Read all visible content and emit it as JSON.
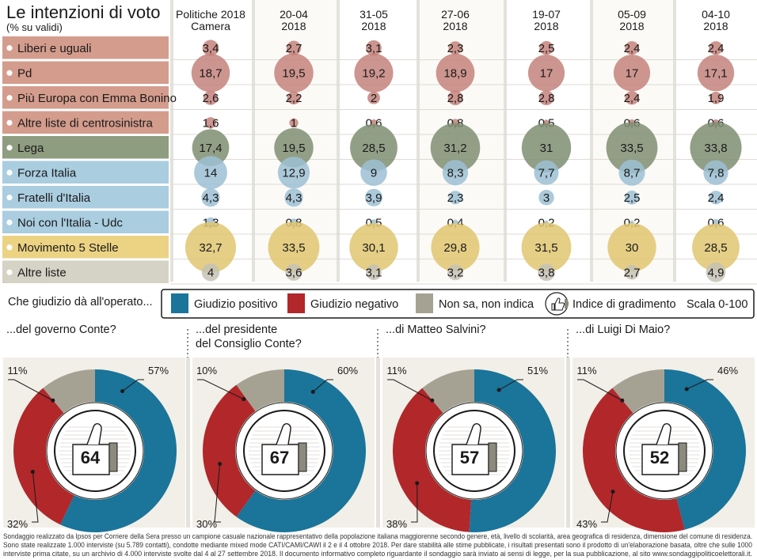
{
  "chart_data": [
    {
      "type": "table",
      "title": "Le intenzioni di voto",
      "subtitle": "(% su validi)",
      "columns": [
        {
          "line1": "Politiche 2018",
          "line2": "Camera"
        },
        {
          "line1": "20-04",
          "line2": "2018"
        },
        {
          "line1": "31-05",
          "line2": "2018"
        },
        {
          "line1": "27-06",
          "line2": "2018"
        },
        {
          "line1": "19-07",
          "line2": "2018"
        },
        {
          "line1": "05-09",
          "line2": "2018"
        },
        {
          "line1": "04-10",
          "line2": "2018"
        }
      ],
      "rows": [
        {
          "label": "Liberi e uguali",
          "group": "centrosinistra",
          "values": [
            "3,4",
            "2,7",
            "3,1",
            "2,3",
            "2,5",
            "2,4",
            "2,4"
          ]
        },
        {
          "label": "Pd",
          "group": "centrosinistra",
          "values": [
            "18,7",
            "19,5",
            "19,2",
            "18,9",
            "17",
            "17",
            "17,1"
          ]
        },
        {
          "label": "Più Europa con Emma Bonino",
          "group": "centrosinistra",
          "values": [
            "2,6",
            "2,2",
            "2",
            "2,8",
            "2,8",
            "2,4",
            "1,9"
          ]
        },
        {
          "label": "Altre liste di centrosinistra",
          "group": "centrosinistra",
          "values": [
            "1,6",
            "1",
            "0,6",
            "0,8",
            "0,5",
            "0,6",
            "0,6"
          ]
        },
        {
          "label": "Lega",
          "group": "lega",
          "values": [
            "17,4",
            "19,5",
            "28,5",
            "31,2",
            "31",
            "33,5",
            "33,8"
          ]
        },
        {
          "label": "Forza Italia",
          "group": "centrodestra",
          "values": [
            "14",
            "12,9",
            "9",
            "8,3",
            "7,7",
            "8,7",
            "7,8"
          ]
        },
        {
          "label": "Fratelli d'Italia",
          "group": "centrodestra",
          "values": [
            "4,3",
            "4,3",
            "3,9",
            "2,3",
            "3",
            "2,5",
            "2,4"
          ]
        },
        {
          "label": "Noi con l'Italia - Udc",
          "group": "centrodestra",
          "values": [
            "1,3",
            "0,8",
            "0,5",
            "0,4",
            "0,2",
            "0,2",
            "0,6"
          ]
        },
        {
          "label": "Movimento 5 Stelle",
          "group": "m5s",
          "values": [
            "32,7",
            "33,5",
            "30,1",
            "29,8",
            "31,5",
            "30",
            "28,5"
          ]
        },
        {
          "label": "Altre liste",
          "group": "altre",
          "values": [
            "4",
            "3,6",
            "3,1",
            "3,2",
            "3,8",
            "2,7",
            "4,9"
          ]
        }
      ],
      "group_colors": {
        "centrosinistra": {
          "band": "#d49c8c",
          "bubble": "#c4837b"
        },
        "lega": {
          "band": "#8e9c7f",
          "bubble": "#7f8e72"
        },
        "centrodestra": {
          "band": "#aacde0",
          "bubble": "#9cbfd3"
        },
        "m5s": {
          "band": "#ecd384",
          "bubble": "#e0c670"
        },
        "altre": {
          "band": "#d5d2c6",
          "bubble": "#c5c2b6"
        }
      }
    },
    {
      "type": "pie",
      "section_title": "Che giudizio dà all'operato...",
      "legend": [
        {
          "label": "Giudizio positivo",
          "color": "#1b7499"
        },
        {
          "label": "Giudizio negativo",
          "color": "#b1272a"
        },
        {
          "label": "Non sa, non indica",
          "color": "#a6a293"
        }
      ],
      "index_label": "Indice di gradimento",
      "scale_label": "Scala 0-100",
      "charts": [
        {
          "title_lines": [
            "...del governo Conte?"
          ],
          "positive": 57,
          "negative": 32,
          "unknown": 11,
          "index": 64,
          "labels": {
            "positive": "57%",
            "negative": "32%",
            "unknown": "11%"
          }
        },
        {
          "title_lines": [
            "...del presidente",
            "del Consiglio Conte?"
          ],
          "positive": 60,
          "negative": 30,
          "unknown": 10,
          "index": 67,
          "labels": {
            "positive": "60%",
            "negative": "30%",
            "unknown": "10%"
          }
        },
        {
          "title_lines": [
            "...di Matteo Salvini?"
          ],
          "positive": 51,
          "negative": 38,
          "unknown": 11,
          "index": 57,
          "labels": {
            "positive": "51%",
            "negative": "38%",
            "unknown": "11%"
          }
        },
        {
          "title_lines": [
            "...di Luigi Di Maio?"
          ],
          "positive": 46,
          "negative": 43,
          "unknown": 11,
          "index": 52,
          "labels": {
            "positive": "46%",
            "negative": "43%",
            "unknown": "11%"
          }
        }
      ]
    }
  ],
  "footnote": [
    "Sondaggio realizzato da Ipsos per Corriere della Sera presso un campione casuale nazionale rappresentativo della popolazione italiana maggiorenne secondo genere, età, livello di scolarità, area geografica di residenza, dimensione del comune di residenza.",
    "Sono state realizzate 1.000 interviste (su 5.789 contatti), condotte mediante mixed mode CATI/CAMI/CAWI il 2 e il 4 ottobre 2018. Per dare stabilità alle stime pubblicate, i risultati presentati sono il prodotto di un'elaborazione basata, oltre che sulle 1000",
    "interviste prima citate, su un archivio di 4.000 interviste svolte dal 4 al 27 settembre 2018. Il documento informativo completo riguardante il sondaggio sarà inviato ai sensi di legge, per la sua pubblicazione, al sito www.sondaggipoliticoelettorali.it."
  ]
}
